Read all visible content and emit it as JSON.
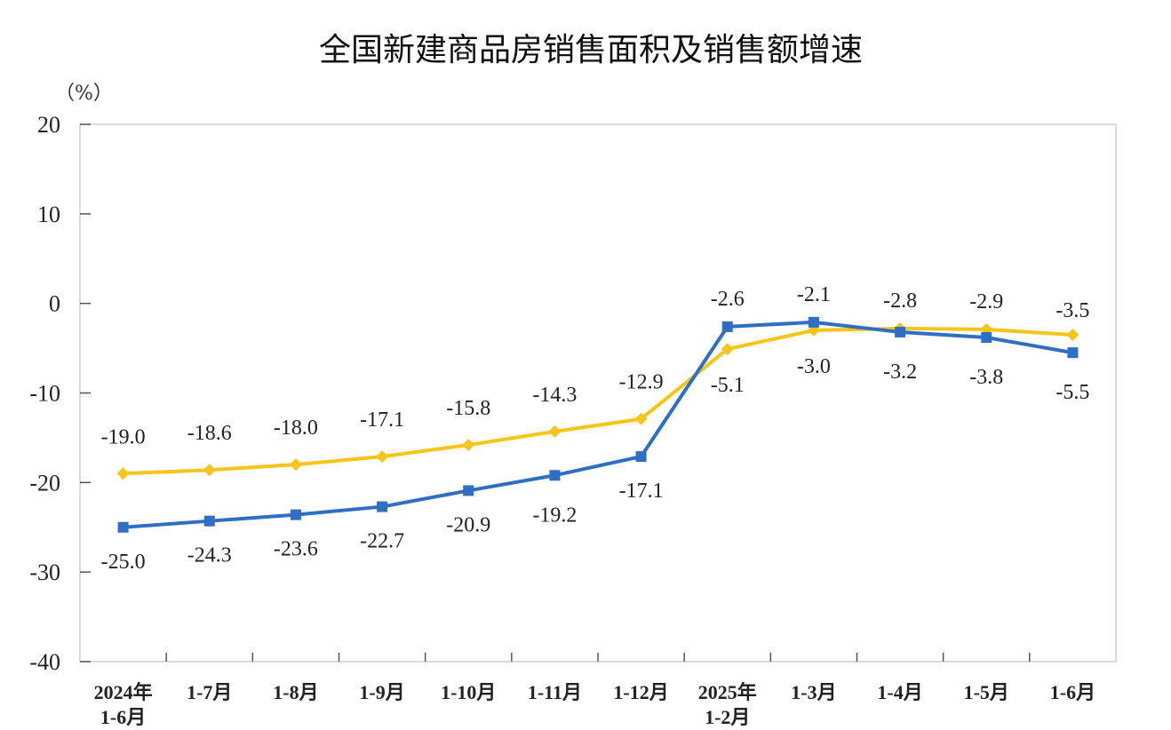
{
  "chart_data": {
    "type": "line",
    "title": "全国新建商品房销售面积及销售额增速",
    "unit_label": "（%）",
    "ylim": [
      -40,
      20
    ],
    "yticks": [
      20,
      10,
      0,
      -10,
      -20,
      -30,
      -40
    ],
    "categories": [
      [
        "2024年",
        "1-6月"
      ],
      [
        "1-7月"
      ],
      [
        "1-8月"
      ],
      [
        "1-9月"
      ],
      [
        "1-10月"
      ],
      [
        "1-11月"
      ],
      [
        "1-12月"
      ],
      [
        "2025年",
        "1-2月"
      ],
      [
        "1-3月"
      ],
      [
        "1-4月"
      ],
      [
        "1-5月"
      ],
      [
        "1-6月"
      ]
    ],
    "grid": false,
    "series": [
      {
        "color": "#F5C518",
        "marker": "diamond",
        "values": [
          -19.0,
          -18.6,
          -18.0,
          -17.1,
          -15.8,
          -14.3,
          -12.9,
          -5.1,
          -3.0,
          -2.8,
          -2.9,
          -3.5
        ],
        "labels": [
          "-19.0",
          "-18.6",
          "-18.0",
          "-17.1",
          "-15.8",
          "-14.3",
          "-12.9",
          "-5.1",
          "-3.0",
          "-2.8",
          "-2.9",
          "-3.5"
        ]
      },
      {
        "color": "#2E6FC4",
        "marker": "square",
        "values": [
          -25.0,
          -24.3,
          -23.6,
          -22.7,
          -20.9,
          -19.2,
          -17.1,
          -2.6,
          -2.1,
          -3.2,
          -3.8,
          -5.5
        ],
        "labels": [
          "-25.0",
          "-24.3",
          "-23.6",
          "-22.7",
          "-20.9",
          "-19.2",
          "-17.1",
          "-2.6",
          "-2.1",
          "-3.2",
          "-3.8",
          "-5.5"
        ]
      }
    ]
  }
}
